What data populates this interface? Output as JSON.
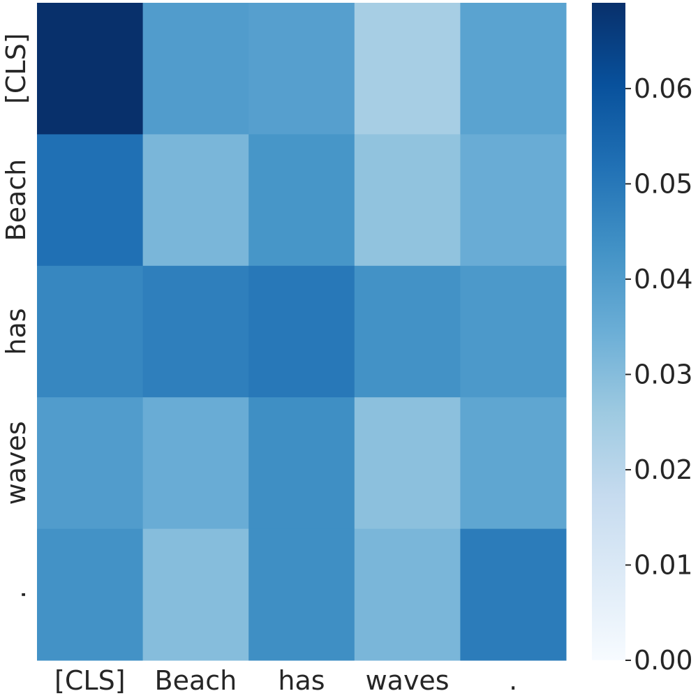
{
  "chart_data": {
    "type": "heatmap",
    "title": "",
    "xlabel": "",
    "ylabel": "",
    "x_categories": [
      "[CLS]",
      "Beach",
      "has",
      "waves",
      "."
    ],
    "y_categories": [
      "[CLS]",
      "Beach",
      "has",
      "waves",
      "."
    ],
    "values": [
      [
        0.069,
        0.04,
        0.039,
        0.024,
        0.038
      ],
      [
        0.052,
        0.032,
        0.042,
        0.028,
        0.035
      ],
      [
        0.046,
        0.048,
        0.05,
        0.043,
        0.041
      ],
      [
        0.04,
        0.035,
        0.044,
        0.029,
        0.037
      ],
      [
        0.043,
        0.03,
        0.044,
        0.032,
        0.049
      ]
    ],
    "colormap": "Blues",
    "colorbar": {
      "range": [
        0.0,
        0.069
      ],
      "ticks": [
        0.0,
        0.01,
        0.02,
        0.03,
        0.04,
        0.05,
        0.06
      ],
      "tick_labels": [
        "0.00",
        "0.01",
        "0.02",
        "0.03",
        "0.04",
        "0.05",
        "0.06"
      ]
    },
    "grid": false,
    "legend": "colorbar-right"
  }
}
